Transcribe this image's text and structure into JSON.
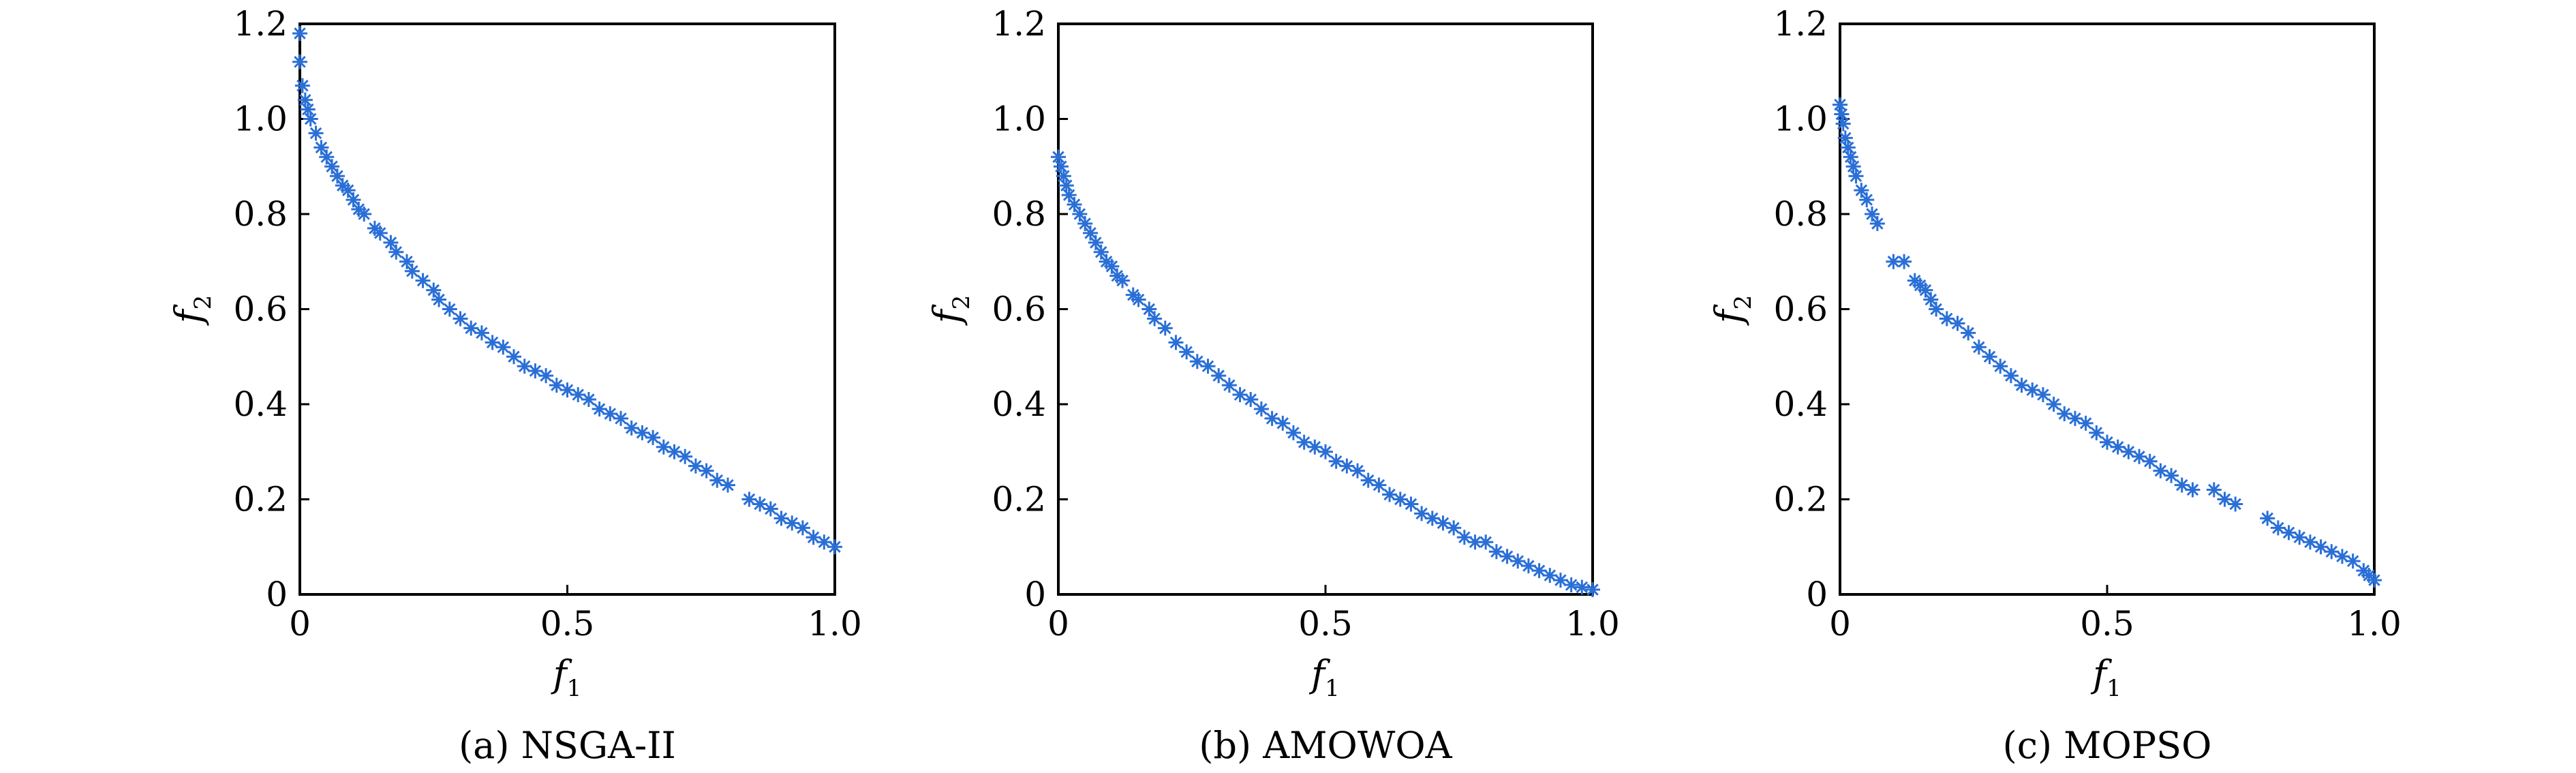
{
  "marker_color": "#2a6fd6",
  "chart_data": [
    {
      "type": "scatter",
      "caption": "(a) NSGA-II",
      "xlabel": "f",
      "xlabel_sub": "1",
      "ylabel": "f",
      "ylabel_sub": "2",
      "xlim": [
        0,
        1.0
      ],
      "ylim": [
        0,
        1.2
      ],
      "xticks": [
        "0",
        "0.5",
        "1.0"
      ],
      "xtick_values": [
        0,
        0.5,
        1.0
      ],
      "yticks": [
        "0",
        "0.2",
        "0.4",
        "0.6",
        "0.8",
        "1.0",
        "1.2"
      ],
      "ytick_values": [
        0,
        0.2,
        0.4,
        0.6,
        0.8,
        1.0,
        1.2
      ],
      "grid": false,
      "x": [
        0.0,
        0.0,
        0.005,
        0.01,
        0.015,
        0.02,
        0.03,
        0.04,
        0.05,
        0.06,
        0.07,
        0.08,
        0.09,
        0.1,
        0.11,
        0.12,
        0.14,
        0.15,
        0.17,
        0.18,
        0.2,
        0.21,
        0.23,
        0.25,
        0.26,
        0.28,
        0.3,
        0.32,
        0.34,
        0.36,
        0.38,
        0.4,
        0.42,
        0.44,
        0.46,
        0.48,
        0.5,
        0.52,
        0.54,
        0.56,
        0.58,
        0.6,
        0.62,
        0.64,
        0.66,
        0.68,
        0.7,
        0.72,
        0.74,
        0.76,
        0.78,
        0.8,
        0.84,
        0.86,
        0.88,
        0.9,
        0.92,
        0.94,
        0.96,
        0.98,
        1.0
      ],
      "y": [
        1.18,
        1.12,
        1.07,
        1.04,
        1.02,
        1.0,
        0.97,
        0.94,
        0.92,
        0.9,
        0.88,
        0.86,
        0.85,
        0.83,
        0.81,
        0.8,
        0.77,
        0.76,
        0.74,
        0.72,
        0.7,
        0.68,
        0.66,
        0.64,
        0.62,
        0.6,
        0.58,
        0.56,
        0.55,
        0.53,
        0.52,
        0.5,
        0.48,
        0.47,
        0.46,
        0.44,
        0.43,
        0.42,
        0.41,
        0.39,
        0.38,
        0.37,
        0.35,
        0.34,
        0.33,
        0.31,
        0.3,
        0.29,
        0.27,
        0.26,
        0.24,
        0.23,
        0.2,
        0.19,
        0.18,
        0.16,
        0.15,
        0.14,
        0.12,
        0.11,
        0.1
      ]
    },
    {
      "type": "scatter",
      "caption": "(b) AMOWOA",
      "xlabel": "f",
      "xlabel_sub": "1",
      "ylabel": "f",
      "ylabel_sub": "2",
      "xlim": [
        0,
        1.0
      ],
      "ylim": [
        0,
        1.2
      ],
      "xticks": [
        "0",
        "0.5",
        "1.0"
      ],
      "xtick_values": [
        0,
        0.5,
        1.0
      ],
      "yticks": [
        "0",
        "0.2",
        "0.4",
        "0.6",
        "0.8",
        "1.0",
        "1.2"
      ],
      "ytick_values": [
        0,
        0.2,
        0.4,
        0.6,
        0.8,
        1.0,
        1.2
      ],
      "grid": false,
      "x": [
        0.0,
        0.005,
        0.01,
        0.015,
        0.02,
        0.03,
        0.04,
        0.05,
        0.06,
        0.07,
        0.08,
        0.09,
        0.1,
        0.11,
        0.12,
        0.14,
        0.15,
        0.17,
        0.18,
        0.2,
        0.22,
        0.24,
        0.26,
        0.28,
        0.3,
        0.32,
        0.34,
        0.36,
        0.38,
        0.4,
        0.42,
        0.44,
        0.46,
        0.48,
        0.5,
        0.52,
        0.54,
        0.56,
        0.58,
        0.6,
        0.62,
        0.64,
        0.66,
        0.68,
        0.7,
        0.72,
        0.74,
        0.76,
        0.78,
        0.8,
        0.82,
        0.84,
        0.86,
        0.88,
        0.9,
        0.92,
        0.94,
        0.96,
        0.98,
        1.0
      ],
      "y": [
        0.92,
        0.9,
        0.88,
        0.86,
        0.84,
        0.82,
        0.8,
        0.78,
        0.76,
        0.74,
        0.72,
        0.7,
        0.69,
        0.67,
        0.66,
        0.63,
        0.62,
        0.6,
        0.58,
        0.56,
        0.53,
        0.51,
        0.49,
        0.48,
        0.46,
        0.44,
        0.42,
        0.41,
        0.39,
        0.37,
        0.36,
        0.34,
        0.32,
        0.31,
        0.3,
        0.28,
        0.27,
        0.26,
        0.24,
        0.23,
        0.21,
        0.2,
        0.19,
        0.17,
        0.16,
        0.15,
        0.14,
        0.12,
        0.11,
        0.11,
        0.09,
        0.08,
        0.07,
        0.06,
        0.05,
        0.04,
        0.03,
        0.02,
        0.015,
        0.01
      ]
    },
    {
      "type": "scatter",
      "caption": "(c) MOPSO",
      "xlabel": "f",
      "xlabel_sub": "1",
      "ylabel": "f",
      "ylabel_sub": "2",
      "xlim": [
        0,
        1.0
      ],
      "ylim": [
        0,
        1.2
      ],
      "xticks": [
        "0",
        "0.5",
        "1.0"
      ],
      "xtick_values": [
        0,
        0.5,
        1.0
      ],
      "yticks": [
        "0",
        "0.2",
        "0.4",
        "0.6",
        "0.8",
        "1.0",
        "1.2"
      ],
      "ytick_values": [
        0,
        0.2,
        0.4,
        0.6,
        0.8,
        1.0,
        1.2
      ],
      "grid": false,
      "x": [
        0.0,
        0.003,
        0.006,
        0.01,
        0.015,
        0.02,
        0.025,
        0.03,
        0.04,
        0.05,
        0.06,
        0.07,
        0.1,
        0.12,
        0.14,
        0.15,
        0.16,
        0.17,
        0.18,
        0.2,
        0.22,
        0.24,
        0.26,
        0.28,
        0.3,
        0.32,
        0.34,
        0.36,
        0.38,
        0.4,
        0.42,
        0.44,
        0.46,
        0.48,
        0.5,
        0.52,
        0.54,
        0.56,
        0.58,
        0.6,
        0.62,
        0.64,
        0.66,
        0.7,
        0.72,
        0.74,
        0.8,
        0.82,
        0.84,
        0.86,
        0.88,
        0.9,
        0.92,
        0.94,
        0.96,
        0.98,
        0.99,
        1.0
      ],
      "y": [
        1.03,
        1.01,
        0.99,
        0.96,
        0.94,
        0.92,
        0.9,
        0.88,
        0.85,
        0.83,
        0.8,
        0.78,
        0.7,
        0.7,
        0.66,
        0.65,
        0.64,
        0.62,
        0.6,
        0.58,
        0.57,
        0.55,
        0.52,
        0.5,
        0.48,
        0.46,
        0.44,
        0.43,
        0.42,
        0.4,
        0.38,
        0.37,
        0.36,
        0.34,
        0.32,
        0.31,
        0.3,
        0.29,
        0.28,
        0.26,
        0.25,
        0.23,
        0.22,
        0.22,
        0.2,
        0.19,
        0.16,
        0.14,
        0.13,
        0.12,
        0.11,
        0.1,
        0.09,
        0.08,
        0.07,
        0.05,
        0.04,
        0.03
      ]
    }
  ]
}
